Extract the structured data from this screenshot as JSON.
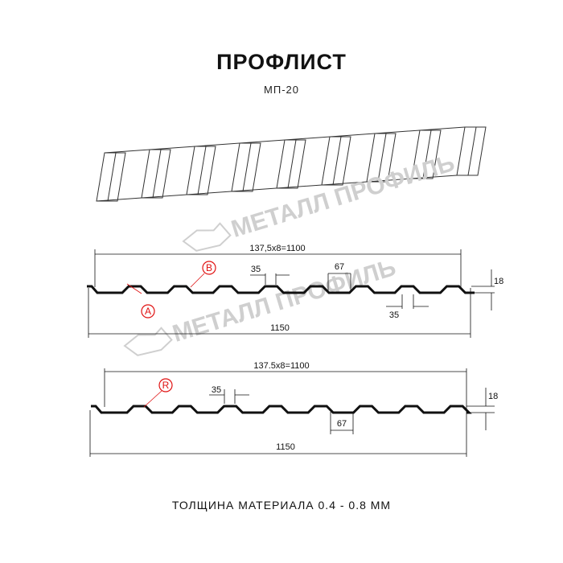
{
  "header": {
    "title": "ПРОФЛИСТ",
    "subtitle": "МП-20"
  },
  "watermark": {
    "text": "МЕТАЛЛ ПРОФИЛЬ"
  },
  "profile_a": {
    "pitch_label": "137,5x8=1100",
    "width_label": "1150",
    "crest_label": "35",
    "valley_top_label": "67",
    "bottom_label": "35",
    "height_label": "18",
    "marker_a": "A",
    "marker_b": "B"
  },
  "profile_b": {
    "pitch_label": "137.5x8=1100",
    "width_label": "1150",
    "crest_label": "35",
    "valley_label": "67",
    "height_label": "18",
    "marker_r": "R"
  },
  "footer": {
    "text": "ТОЛЩИНА МАТЕРИАЛА 0.4 - 0.8 ММ"
  },
  "colors": {
    "marker": "#e01010",
    "line": "#111111",
    "watermark": "#cfcfcf"
  }
}
